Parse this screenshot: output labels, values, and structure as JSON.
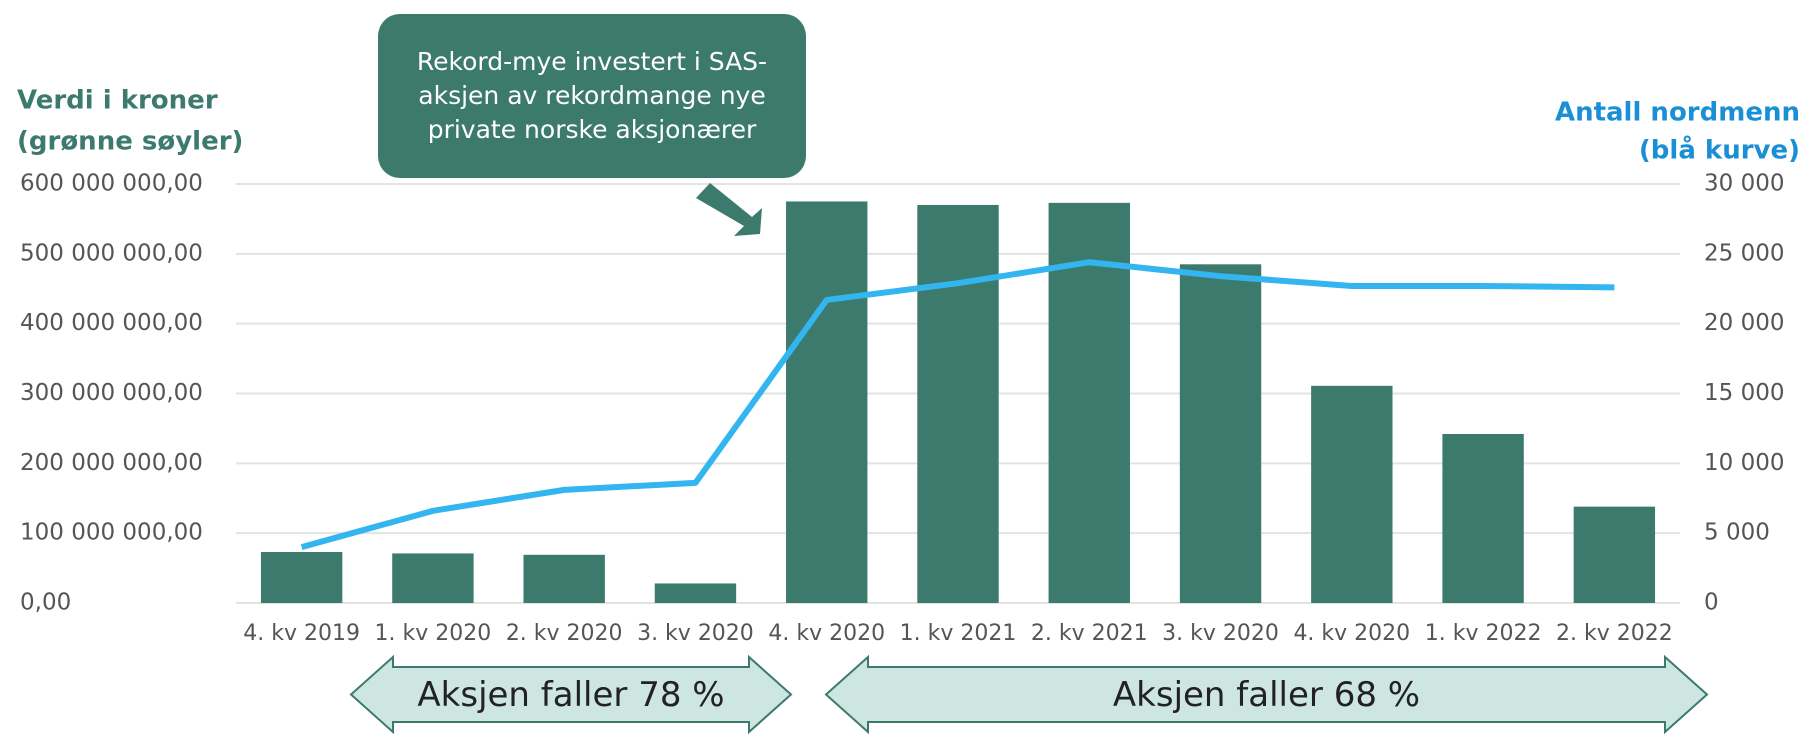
{
  "chart_data": {
    "type": "bar",
    "y_label": [
      "Verdi i kroner",
      "(grønne søyler)"
    ],
    "y2_label": [
      "Antall nordmenn",
      "(blå kurve)"
    ],
    "callout": [
      "Rekord-mye investert i SAS-",
      "aksjen av rekordmange nye",
      "private norske aksjonærer"
    ],
    "arrows": [
      "Aksjen faller 78 %",
      "Aksjen faller 68 %"
    ],
    "categories": [
      "4. kv 2019",
      "1. kv 2020",
      "2. kv 2020",
      "3. kv 2020",
      "4. kv 2020",
      "1. kv 2021",
      "2. kv 2021",
      "3. kv 2020",
      "4. kv 2020",
      "1. kv 2022",
      "2. kv 2022"
    ],
    "series": [
      {
        "type": "bar",
        "color": "#3d7a6e",
        "values": [
          73000000,
          71000000,
          69000000,
          28000000,
          575000000,
          570000000,
          573000000,
          485000000,
          311000000,
          242000000,
          138000000
        ]
      },
      {
        "type": "line",
        "axis": "y2",
        "color": "#33b5f0",
        "values": [
          4000,
          6600,
          8100,
          8600,
          21700,
          22900,
          24400,
          23400,
          22700,
          22700,
          22600
        ]
      }
    ],
    "ylim": [
      0,
      600000000
    ],
    "yticks": [
      {
        "value": 0,
        "label": "0,00"
      },
      {
        "value": 100000000,
        "label": "100 000 000,00"
      },
      {
        "value": 200000000,
        "label": "200 000 000,00"
      },
      {
        "value": 300000000,
        "label": "300 000 000,00"
      },
      {
        "value": 400000000,
        "label": "400 000 000,00"
      },
      {
        "value": 500000000,
        "label": "500 000 000,00"
      },
      {
        "value": 600000000,
        "label": "600 000 000,00"
      }
    ],
    "y2lim": [
      0,
      30000
    ],
    "y2ticks": [
      0,
      {
        "value": 5000,
        "label": "5 000"
      },
      {
        "value": 10000,
        "label": "10 000"
      },
      {
        "value": 15000,
        "label": "15 000"
      },
      {
        "value": 20000,
        "label": "20 000"
      },
      {
        "value": 25000,
        "label": "25 000"
      },
      {
        "value": 30000,
        "label": "30 000"
      }
    ],
    "grid": true
  }
}
